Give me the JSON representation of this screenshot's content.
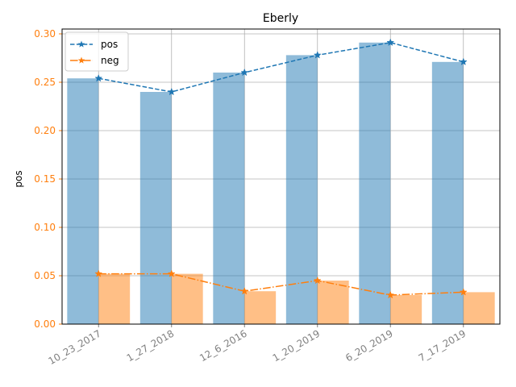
{
  "chart_data": {
    "type": "bar",
    "title": "Eberly",
    "xlabel": "",
    "ylabel": "pos",
    "ylim": [
      0,
      0.3
    ],
    "yticks": [
      "0.00",
      "0.05",
      "0.10",
      "0.15",
      "0.20",
      "0.25",
      "0.30"
    ],
    "grid": true,
    "legend_position": "top-left",
    "categories": [
      "10_23_2017",
      "1_27_2018",
      "12_6_2016",
      "1_20_2019",
      "6_20_2019",
      "7_17_2019"
    ],
    "series": [
      {
        "name": "pos",
        "values": [
          0.254,
          0.24,
          0.26,
          0.278,
          0.291,
          0.271
        ],
        "color": "#1f77b4",
        "line_style": "dashed",
        "marker": "star"
      },
      {
        "name": "neg",
        "values": [
          0.052,
          0.052,
          0.034,
          0.045,
          0.03,
          0.033
        ],
        "color": "#ff7f0e",
        "line_style": "dash-dot",
        "marker": "star"
      }
    ]
  }
}
